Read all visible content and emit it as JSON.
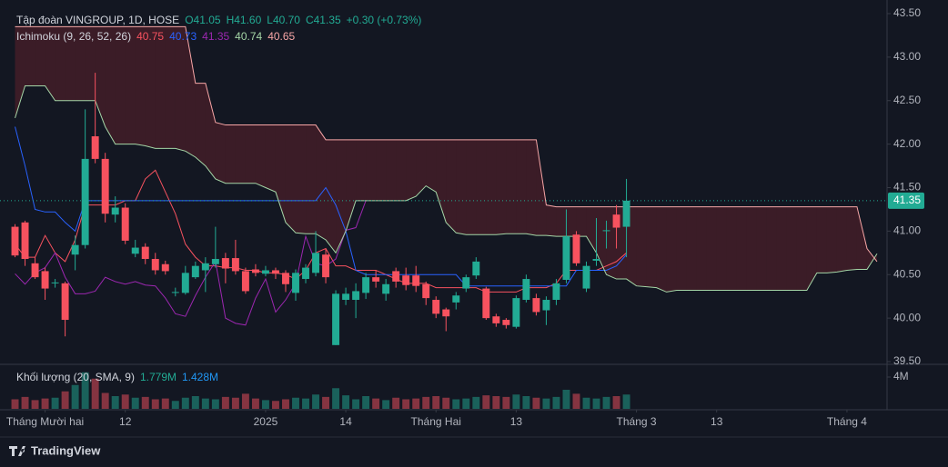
{
  "chart_data": {
    "type": "candlestick",
    "title": "Tập đoàn VINGROUP, 1D, HOSE",
    "quote": [
      "O41.05",
      "H41.60",
      "L40.70",
      "C41.35",
      "+0.30 (+0.73%)"
    ],
    "up_color": "#22ab94",
    "down_color": "#f7525f",
    "ylim": [
      39.5,
      43.5
    ],
    "yticks": [
      {
        "value": 39.5,
        "label": "39.50"
      },
      {
        "value": 40,
        "label": "40.00"
      },
      {
        "value": 40.5,
        "label": "40.50"
      },
      {
        "value": 41,
        "label": "41.00"
      },
      {
        "value": 41.5,
        "label": "41.50"
      },
      {
        "value": 42,
        "label": "42.00"
      },
      {
        "value": 42.5,
        "label": "42.50"
      },
      {
        "value": 43,
        "label": "43.00"
      },
      {
        "value": 43.5,
        "label": "43.50"
      }
    ],
    "xticks": [
      {
        "value": 3,
        "label": "Tháng Mười hai"
      },
      {
        "value": 11,
        "label": "12"
      },
      {
        "value": 25,
        "label": "2025"
      },
      {
        "value": 33,
        "label": "14"
      },
      {
        "value": 42,
        "label": "Tháng Hai"
      },
      {
        "value": 50,
        "label": "13"
      },
      {
        "value": 62,
        "label": "Tháng 3"
      },
      {
        "value": 70,
        "label": "13"
      },
      {
        "value": 83,
        "label": "Tháng 4"
      }
    ],
    "xlim": [
      -1.5,
      87
    ],
    "current_price": 41.35,
    "open": [
      41.05,
      41.1,
      40.63,
      40.54,
      40.4,
      40.4,
      40.73,
      40.84,
      42.09,
      41.83,
      41.19,
      41.27,
      40.74,
      40.82,
      40.68,
      40.62,
      40.29,
      40.29,
      40.47,
      40.55,
      40.62,
      40.69,
      40.69,
      40.54,
      40.56,
      40.51,
      40.55,
      40.52,
      40.29,
      40.45,
      40.52,
      40.73,
      39.69,
      40.21,
      40.21,
      40.29,
      40.47,
      40.28,
      40.54,
      40.49,
      40.49,
      40.39,
      40.21,
      40.1,
      40.18,
      40.34,
      40.49,
      40.34,
      40.02,
      39.98,
      39.9,
      40.21,
      40.23,
      40.09,
      40.21,
      40.44,
      40.96,
      40.34,
      40.66,
      41.0,
      41.19,
      41.05
    ],
    "high": [
      41.08,
      41.12,
      40.7,
      40.58,
      40.45,
      40.42,
      40.95,
      42.4,
      42.82,
      41.9,
      41.4,
      41.32,
      40.9,
      40.86,
      40.75,
      40.66,
      40.35,
      40.6,
      40.65,
      40.7,
      41.05,
      40.75,
      40.9,
      40.58,
      40.62,
      40.6,
      40.58,
      40.55,
      40.56,
      40.62,
      41.0,
      40.8,
      40.32,
      40.35,
      40.4,
      40.52,
      40.55,
      40.45,
      40.58,
      40.58,
      40.6,
      40.42,
      40.25,
      40.12,
      40.3,
      40.5,
      40.7,
      40.36,
      40.05,
      40.0,
      40.26,
      40.5,
      40.28,
      40.25,
      40.45,
      41.25,
      41.0,
      40.65,
      41.15,
      41.12,
      41.3,
      41.6
    ],
    "low": [
      40.7,
      40.6,
      40.45,
      40.21,
      40.35,
      39.79,
      40.55,
      40.8,
      41.78,
      41.1,
      41.1,
      40.85,
      40.7,
      40.62,
      40.5,
      40.5,
      40.25,
      40.27,
      40.45,
      40.3,
      40.58,
      40.4,
      40.5,
      40.28,
      40.48,
      40.48,
      40.45,
      40.3,
      40.2,
      40.4,
      40.48,
      40.4,
      39.69,
      40.15,
      40.0,
      40.22,
      40.35,
      40.2,
      40.35,
      40.32,
      40.3,
      40.15,
      40.0,
      39.85,
      40.1,
      40.3,
      40.45,
      39.98,
      39.9,
      39.88,
      39.88,
      40.18,
      40.03,
      39.92,
      40.15,
      40.4,
      40.6,
      40.3,
      40.6,
      40.8,
      40.8,
      40.7
    ],
    "close": [
      40.72,
      40.68,
      40.47,
      40.34,
      40.41,
      39.98,
      40.84,
      41.83,
      41.83,
      41.2,
      41.27,
      40.89,
      40.81,
      40.68,
      40.55,
      40.54,
      40.3,
      40.52,
      40.6,
      40.63,
      40.68,
      40.57,
      40.54,
      40.31,
      40.52,
      40.55,
      40.51,
      40.39,
      40.52,
      40.58,
      40.75,
      40.47,
      40.28,
      40.28,
      40.31,
      40.47,
      40.42,
      40.39,
      40.42,
      40.38,
      40.37,
      40.23,
      40.05,
      40.02,
      40.26,
      40.47,
      40.65,
      40.0,
      39.94,
      39.92,
      40.23,
      40.45,
      40.07,
      40.21,
      40.4,
      40.94,
      40.63,
      40.6,
      40.68,
      41.01,
      41.04,
      41.35
    ],
    "ichimoku": {
      "label": "Ichimoku (9, 26, 52, 26)",
      "cloud_up_color": "rgba(34,171,148,0.18)",
      "cloud_down_color": "rgba(242,54,69,0.18)",
      "series": [
        {
          "color": "#f7525f",
          "last": 40.75,
          "values": [
            40.85,
            40.7,
            40.7,
            40.95,
            40.75,
            40.65,
            40.9,
            41.3,
            41.3,
            41.3,
            41.3,
            41.35,
            41.35,
            41.6,
            41.7,
            41.45,
            41.2,
            40.85,
            40.7,
            40.6,
            40.6,
            40.58,
            40.58,
            40.55,
            40.55,
            40.52,
            40.52,
            40.5,
            40.45,
            40.55,
            40.75,
            40.8,
            40.6,
            40.6,
            40.55,
            40.55,
            40.55,
            40.5,
            40.45,
            40.4,
            40.4,
            40.4,
            40.35,
            40.35,
            40.35,
            40.35,
            40.35,
            40.3,
            40.3,
            40.3,
            40.3,
            40.35,
            40.35,
            40.35,
            40.4,
            40.55,
            40.55,
            40.55,
            40.55,
            40.6,
            40.65,
            40.75
          ]
        },
        {
          "color": "#2962ff",
          "last": 40.73,
          "values": [
            42.2,
            41.75,
            41.25,
            41.22,
            41.22,
            41.1,
            41.0,
            41.35,
            41.35,
            41.35,
            41.35,
            41.35,
            41.35,
            41.35,
            41.35,
            41.35,
            41.35,
            41.35,
            41.35,
            41.35,
            41.35,
            41.35,
            41.35,
            41.35,
            41.35,
            41.35,
            41.35,
            41.35,
            41.35,
            41.35,
            41.35,
            41.5,
            41.3,
            41.0,
            40.55,
            40.5,
            40.5,
            40.5,
            40.5,
            40.5,
            40.5,
            40.5,
            40.5,
            40.5,
            40.5,
            40.37,
            40.37,
            40.37,
            40.37,
            40.37,
            40.37,
            40.37,
            40.37,
            40.37,
            40.37,
            40.37,
            40.55,
            40.55,
            40.55,
            40.55,
            40.6,
            40.73
          ]
        },
        {
          "color": "#9c27b0",
          "last": 41.35,
          "values": [
            40.51,
            40.39,
            40.52,
            40.58,
            40.75,
            40.47,
            40.28,
            40.28,
            40.31,
            40.47,
            40.42,
            40.39,
            40.42,
            40.38,
            40.37,
            40.23,
            40.05,
            40.02,
            40.26,
            40.47,
            40.65,
            40.0,
            39.94,
            39.92,
            40.23,
            40.45,
            40.07,
            40.21,
            40.4,
            40.94,
            40.63,
            40.6,
            40.68,
            41.01,
            41.04,
            41.35
          ]
        },
        {
          "color": "#a5d6a7",
          "last": 40.74,
          "values": [
            42.3,
            42.67,
            42.67,
            42.67,
            42.5,
            42.5,
            42.5,
            42.5,
            42.5,
            42.2,
            42.0,
            42.0,
            42.0,
            41.98,
            41.95,
            41.95,
            41.95,
            41.92,
            41.85,
            41.75,
            41.6,
            41.55,
            41.55,
            41.55,
            41.55,
            41.5,
            41.45,
            41.1,
            40.98,
            40.97,
            40.97,
            40.9,
            40.75,
            41.0,
            41.35,
            41.35,
            41.35,
            41.35,
            41.35,
            41.35,
            41.4,
            41.52,
            41.45,
            41.1,
            40.98,
            40.96,
            40.96,
            40.96,
            40.96,
            40.97,
            40.97,
            40.97,
            40.95,
            40.95,
            40.94,
            40.94,
            40.94,
            40.94,
            40.75,
            40.5,
            40.45,
            40.45,
            40.37,
            40.36,
            40.35,
            40.3,
            40.32,
            40.32,
            40.32,
            40.32,
            40.32,
            40.32,
            40.32,
            40.32,
            40.32,
            40.32,
            40.32,
            40.32,
            40.32,
            40.32,
            40.52,
            40.52,
            40.53,
            40.55,
            40.56,
            40.56,
            40.74
          ]
        },
        {
          "color": "#f7a6a6",
          "last": 40.65,
          "values": [
            43.35,
            43.35,
            43.35,
            43.35,
            43.35,
            43.35,
            43.35,
            43.35,
            43.35,
            43.35,
            43.35,
            43.35,
            43.35,
            43.35,
            43.35,
            43.35,
            43.35,
            43.35,
            42.7,
            42.7,
            42.25,
            42.22,
            42.22,
            42.22,
            42.22,
            42.22,
            42.22,
            42.22,
            42.22,
            42.22,
            42.22,
            42.05,
            42.05,
            42.05,
            42.05,
            42.05,
            42.05,
            42.05,
            42.05,
            42.05,
            42.05,
            42.05,
            42.05,
            42.05,
            42.05,
            42.05,
            42.05,
            42.05,
            42.05,
            42.05,
            42.05,
            42.05,
            42.05,
            41.3,
            41.28,
            41.28,
            41.28,
            41.28,
            41.28,
            41.28,
            41.28,
            41.28,
            41.28,
            41.28,
            41.28,
            41.28,
            41.28,
            41.28,
            41.28,
            41.28,
            41.28,
            41.28,
            41.28,
            41.28,
            41.28,
            41.28,
            41.28,
            41.28,
            41.28,
            41.28,
            41.28,
            41.28,
            41.28,
            41.28,
            41.28,
            40.8,
            40.65
          ]
        }
      ]
    },
    "volume": {
      "label": "Khối lượng (20, SMA, 9)",
      "legend_values": [
        "1.779M",
        "1.428M"
      ],
      "legend_colors": [
        "#22ab94",
        "#2196f3"
      ],
      "ylim": [
        0,
        5.6
      ],
      "yticks": [
        {
          "value": 4,
          "label": "4M"
        }
      ],
      "values": [
        1.2,
        1.5,
        1.1,
        1.3,
        1.4,
        2.2,
        3.0,
        4.6,
        3.8,
        2.0,
        1.6,
        1.8,
        1.4,
        1.5,
        1.2,
        1.3,
        1.0,
        1.4,
        1.6,
        1.3,
        1.2,
        1.5,
        1.4,
        1.9,
        1.3,
        1.1,
        1.0,
        1.2,
        1.4,
        1.3,
        1.8,
        1.5,
        2.6,
        1.7,
        1.2,
        1.6,
        1.3,
        1.1,
        1.4,
        1.2,
        1.3,
        1.5,
        1.6,
        1.4,
        1.2,
        1.3,
        1.5,
        1.7,
        1.6,
        1.5,
        1.8,
        1.6,
        1.4,
        1.3,
        1.5,
        2.4,
        1.9,
        1.4,
        1.3,
        1.5,
        1.6,
        1.8
      ]
    }
  },
  "brand": "TradingView"
}
